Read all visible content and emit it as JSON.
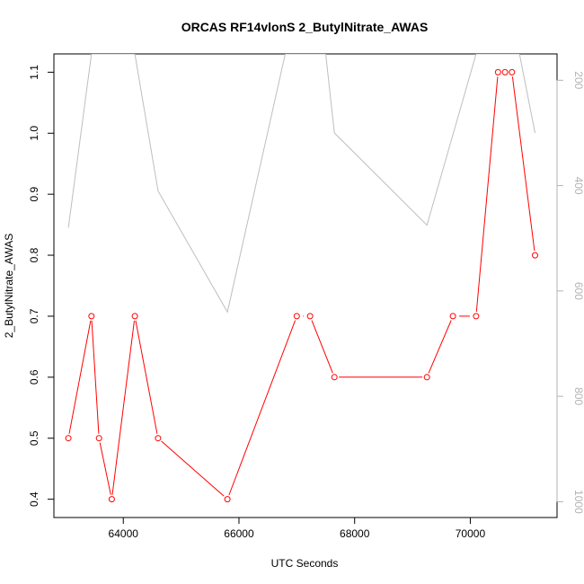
{
  "chart_data": {
    "type": "line",
    "title": "ORCAS RF14vlonS 2_ButylNitrate_AWAS",
    "xlabel": "UTC Seconds",
    "ylabel": "2_ButylNitrate_AWAS",
    "xlim": [
      62800,
      71500
    ],
    "ylim": [
      0.37,
      1.13
    ],
    "xticks": [
      64000,
      66000,
      68000,
      70000
    ],
    "yticks": [
      0.4,
      0.5,
      0.6,
      0.7,
      0.8,
      0.9,
      1.0,
      1.1
    ],
    "y2lim": [
      1030,
      150
    ],
    "y2ticks": [
      200,
      400,
      600,
      800,
      1000
    ],
    "series": [
      {
        "role": "primary",
        "color": "#ff0000",
        "marker": "open-circle",
        "x": [
          63050,
          63450,
          63580,
          63800,
          64200,
          64600,
          65800,
          67000,
          67230,
          67650,
          69250,
          69700,
          70100,
          70480,
          70600,
          70720,
          71120
        ],
        "y": [
          0.5,
          0.7,
          0.5,
          0.4,
          0.7,
          0.5,
          0.4,
          0.7,
          0.7,
          0.6,
          0.6,
          0.7,
          0.7,
          1.1,
          1.1,
          1.1,
          0.8
        ],
        "segment_breaks_after": [
          7,
          11
        ]
      },
      {
        "role": "secondary-right-axis",
        "color": "#bebebe",
        "x": [
          63050,
          63450,
          64200,
          64600,
          65800,
          66800,
          67500,
          67650,
          69250,
          70100,
          70850,
          71120
        ],
        "y": [
          480,
          150,
          150,
          410,
          640,
          150,
          150,
          300,
          475,
          150,
          150,
          300
        ]
      }
    ]
  }
}
